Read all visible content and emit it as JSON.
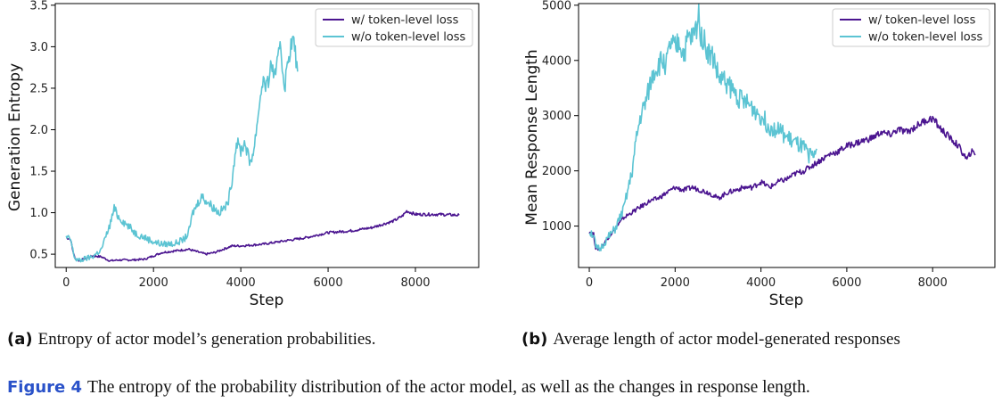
{
  "colors": {
    "with": "#4b1590",
    "without": "#5cc4d3"
  },
  "chart_data": [
    {
      "type": "line",
      "xlabel": "Step",
      "ylabel": "Generation Entropy",
      "xlim": [
        -250,
        9450
      ],
      "ylim": [
        0.34,
        3.52
      ],
      "xticks": [
        0,
        2000,
        4000,
        6000,
        8000
      ],
      "yticks": [
        0.5,
        1.0,
        1.5,
        2.0,
        2.5,
        3.0,
        3.5
      ],
      "ytick_labels": [
        "0.5",
        "1.0",
        "1.5",
        "2.0",
        "2.5",
        "3.0",
        "3.5"
      ],
      "legend": "top-right",
      "grid": false,
      "series": [
        {
          "name": "w/ token-level loss",
          "color": "#4b1590",
          "x": [
            0,
            100,
            150,
            200,
            300,
            400,
            600,
            800,
            1000,
            1200,
            1500,
            1800,
            2000,
            2200,
            2500,
            2800,
            3000,
            3200,
            3400,
            3600,
            3800,
            4000,
            4500,
            5000,
            5500,
            6000,
            6500,
            7000,
            7500,
            7700,
            7800,
            8000,
            8500,
            9000
          ],
          "y": [
            0.7,
            0.68,
            0.55,
            0.45,
            0.42,
            0.44,
            0.48,
            0.47,
            0.42,
            0.43,
            0.43,
            0.44,
            0.48,
            0.52,
            0.54,
            0.56,
            0.53,
            0.5,
            0.52,
            0.56,
            0.6,
            0.6,
            0.62,
            0.66,
            0.7,
            0.76,
            0.78,
            0.82,
            0.9,
            0.96,
            1.02,
            0.98,
            0.98,
            0.97
          ]
        },
        {
          "name": "w/o token-level loss",
          "color": "#5cc4d3",
          "x": [
            0,
            100,
            150,
            200,
            300,
            400,
            600,
            800,
            1000,
            1100,
            1200,
            1400,
            1600,
            1800,
            2000,
            2200,
            2500,
            2700,
            2800,
            2900,
            3000,
            3100,
            3200,
            3400,
            3500,
            3700,
            3800,
            3900,
            4000,
            4100,
            4200,
            4300,
            4400,
            4500,
            4600,
            4700,
            4800,
            4900,
            5000,
            5100,
            5200,
            5300
          ],
          "y": [
            0.7,
            0.68,
            0.55,
            0.45,
            0.42,
            0.44,
            0.47,
            0.55,
            0.85,
            1.05,
            0.95,
            0.85,
            0.75,
            0.7,
            0.65,
            0.62,
            0.63,
            0.68,
            0.75,
            1.0,
            1.1,
            1.2,
            1.15,
            1.05,
            1.0,
            1.1,
            1.4,
            1.85,
            1.75,
            1.85,
            1.6,
            1.75,
            2.2,
            2.6,
            2.5,
            2.8,
            2.6,
            3.1,
            2.5,
            2.9,
            3.1,
            2.7
          ]
        }
      ]
    },
    {
      "type": "line",
      "xlabel": "Step",
      "ylabel": "Mean Response Length",
      "xlim": [
        -250,
        9450
      ],
      "ylim": [
        250,
        5030
      ],
      "xticks": [
        0,
        2000,
        4000,
        6000,
        8000
      ],
      "yticks": [
        1000,
        2000,
        3000,
        4000,
        5000
      ],
      "ytick_labels": [
        "1000",
        "2000",
        "3000",
        "4000",
        "5000"
      ],
      "legend": "top-right",
      "grid": false,
      "series": [
        {
          "name": "w/ token-level loss",
          "color": "#4b1590",
          "x": [
            0,
            100,
            150,
            250,
            400,
            600,
            800,
            1000,
            1200,
            1400,
            1600,
            1800,
            2000,
            2200,
            2400,
            2600,
            2800,
            3000,
            3200,
            3400,
            3600,
            3800,
            4000,
            4200,
            4400,
            4600,
            4800,
            5000,
            5200,
            5400,
            5600,
            5800,
            6000,
            6200,
            6400,
            6600,
            6800,
            7000,
            7200,
            7400,
            7600,
            7800,
            8000,
            8200,
            8400,
            8600,
            8800,
            8900,
            9000
          ],
          "y": [
            900,
            850,
            600,
            580,
            750,
            950,
            1150,
            1250,
            1350,
            1450,
            1500,
            1600,
            1700,
            1650,
            1700,
            1650,
            1600,
            1500,
            1600,
            1650,
            1700,
            1700,
            1800,
            1700,
            1800,
            1850,
            1950,
            2000,
            2100,
            2200,
            2300,
            2350,
            2450,
            2500,
            2550,
            2600,
            2700,
            2650,
            2750,
            2700,
            2800,
            2900,
            2950,
            2750,
            2600,
            2450,
            2200,
            2350,
            2300
          ]
        },
        {
          "name": "w/o token-level loss",
          "color": "#5cc4d3",
          "x": [
            0,
            100,
            150,
            250,
            400,
            600,
            800,
            1000,
            1100,
            1200,
            1300,
            1400,
            1500,
            1600,
            1700,
            1800,
            1900,
            2000,
            2100,
            2200,
            2300,
            2400,
            2500,
            2550,
            2600,
            2700,
            2800,
            2900,
            3000,
            3200,
            3400,
            3600,
            3800,
            4000,
            4200,
            4400,
            4600,
            4800,
            5000,
            5100,
            5200,
            5300
          ],
          "y": [
            900,
            850,
            600,
            580,
            750,
            950,
            1300,
            2000,
            2600,
            3000,
            3200,
            3500,
            3800,
            3900,
            4000,
            3950,
            4300,
            4200,
            4350,
            4100,
            4400,
            4400,
            4600,
            4850,
            4500,
            4300,
            4100,
            4050,
            3700,
            3600,
            3400,
            3250,
            3150,
            3000,
            2800,
            2750,
            2600,
            2500,
            2400,
            2300,
            2250,
            2400
          ]
        }
      ]
    }
  ],
  "subcaptions": [
    {
      "letter": "(a)",
      "text": "Entropy of actor model’s generation probabilities."
    },
    {
      "letter": "(b)",
      "text": "Average length of actor model-generated responses"
    }
  ],
  "caption": {
    "label": "Figure 4",
    "text": "The entropy of the probability distribution of the actor model, as well as the changes in response length."
  }
}
